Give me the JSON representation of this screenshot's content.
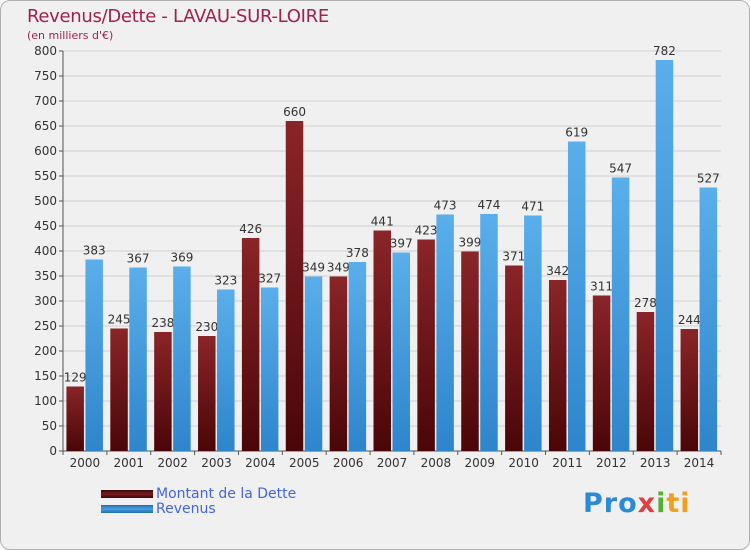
{
  "title": "Revenus/Dette - LAVAU-SUR-LOIRE",
  "subtitle": "(en milliers d'€)",
  "colors": {
    "debt": "#7a1a1e",
    "revenue": "#4a9fe0",
    "title": "#a0224a",
    "legend_text": "#4466dd"
  },
  "chart_data": {
    "type": "bar",
    "title": "Revenus/Dette - LAVAU-SUR-LOIRE",
    "subtitle": "(en milliers d'€)",
    "categories": [
      "2000",
      "2001",
      "2002",
      "2003",
      "2004",
      "2005",
      "2006",
      "2007",
      "2008",
      "2009",
      "2010",
      "2011",
      "2012",
      "2013",
      "2014"
    ],
    "series": [
      {
        "name": "Montant de la Dette",
        "values": [
          129,
          245,
          238,
          230,
          426,
          660,
          349,
          441,
          423,
          399,
          371,
          342,
          311,
          278,
          244
        ]
      },
      {
        "name": "Revenus",
        "values": [
          383,
          367,
          369,
          323,
          327,
          349,
          378,
          397,
          473,
          474,
          471,
          619,
          547,
          782,
          527
        ]
      }
    ],
    "ylim": [
      0,
      800
    ],
    "yticks": [
      0,
      50,
      100,
      150,
      200,
      250,
      300,
      350,
      400,
      450,
      500,
      550,
      600,
      650,
      700,
      750,
      800
    ],
    "grid": true,
    "legend_position": "bottom-left"
  },
  "legend": [
    {
      "label": "Montant de la Dette"
    },
    {
      "label": "Revenus"
    }
  ],
  "logo": {
    "p1": "Pro",
    "p2": "x",
    "p3": "i",
    "p4": "ti"
  }
}
